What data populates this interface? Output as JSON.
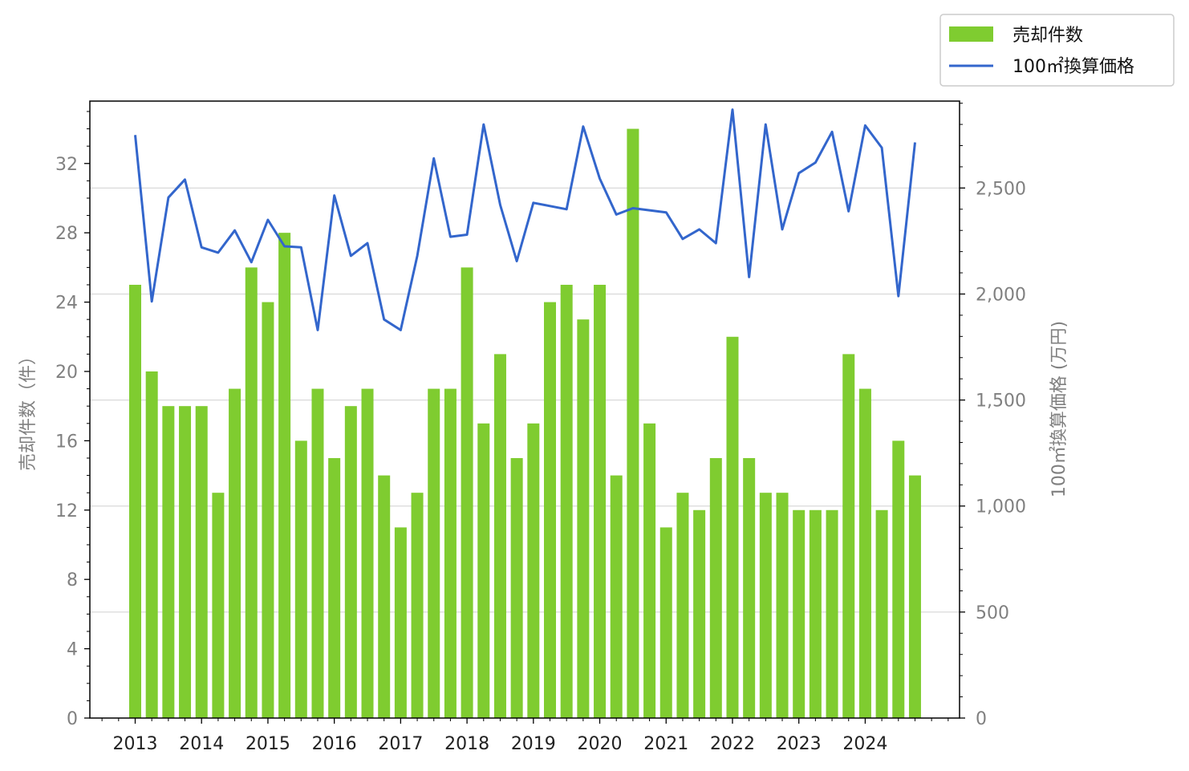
{
  "chart_data": {
    "type": "bar+line",
    "x": [
      "2013-01",
      "2013-04",
      "2013-07",
      "2013-10",
      "2014-01",
      "2014-04",
      "2014-07",
      "2014-10",
      "2015-01",
      "2015-04",
      "2015-07",
      "2015-10",
      "2016-01",
      "2016-04",
      "2016-07",
      "2016-10",
      "2017-01",
      "2017-04",
      "2017-07",
      "2017-10",
      "2018-01",
      "2018-04",
      "2018-07",
      "2018-10",
      "2019-01",
      "2019-04",
      "2019-07",
      "2019-10",
      "2020-01",
      "2020-04",
      "2020-07",
      "2020-10",
      "2021-01",
      "2021-04",
      "2021-07",
      "2021-10",
      "2022-01",
      "2022-04",
      "2022-07",
      "2022-10",
      "2023-01",
      "2023-04",
      "2023-07",
      "2023-10",
      "2024-01",
      "2024-04",
      "2024-07",
      "2024-10"
    ],
    "x_ticks": [
      "2013",
      "2014",
      "2015",
      "2016",
      "2017",
      "2018",
      "2019",
      "2020",
      "2021",
      "2022",
      "2023",
      "2024"
    ],
    "series": [
      {
        "name": "売却件数",
        "type": "bar",
        "axis": "left",
        "color": "#7fcc30",
        "values": [
          25,
          20,
          18,
          18,
          18,
          13,
          19,
          26,
          24,
          28,
          16,
          19,
          15,
          18,
          19,
          14,
          11,
          13,
          19,
          19,
          26,
          17,
          21,
          15,
          17,
          24,
          25,
          23,
          25,
          14,
          34,
          17,
          11,
          13,
          12,
          15,
          22,
          15,
          13,
          13,
          12,
          12,
          12,
          21,
          19,
          12,
          16,
          14
        ]
      },
      {
        "name": "100㎡換算価格",
        "type": "line",
        "axis": "right",
        "color": "#3366cc",
        "values": [
          2750,
          1965,
          2455,
          2540,
          2220,
          2195,
          2300,
          2150,
          2350,
          2225,
          2220,
          1830,
          2465,
          2180,
          2240,
          1880,
          1830,
          2180,
          2640,
          2270,
          2280,
          2800,
          2420,
          2155,
          2430,
          2415,
          2400,
          2790,
          2545,
          2375,
          2405,
          2395,
          2385,
          2260,
          2305,
          2240,
          2870,
          2080,
          2800,
          2305,
          2570,
          2620,
          2765,
          2390,
          2795,
          2690,
          1990,
          2715
        ]
      }
    ],
    "y_left": {
      "label": "売却件数（件）",
      "ylim": [
        0,
        35.6
      ],
      "ticks": [
        "0",
        "4",
        "8",
        "12",
        "16",
        "20",
        "24",
        "28",
        "32"
      ]
    },
    "y_right": {
      "label": "100㎡換算価格 (万円)",
      "ylim": [
        0,
        2910
      ],
      "ticks": [
        "0",
        "500",
        "1,000",
        "1,500",
        "2,000",
        "2,500"
      ]
    },
    "grid": "horizontal (right axis)",
    "legend_placement": "top-right"
  }
}
